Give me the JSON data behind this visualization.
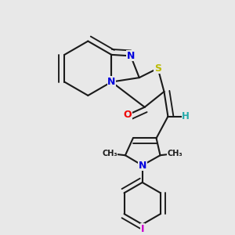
{
  "background_color": "#e8e8e8",
  "bond_color": "#1a1a1a",
  "atom_colors": {
    "N": "#0000dd",
    "O": "#ee0000",
    "S": "#bbbb00",
    "H": "#22aaaa",
    "I": "#cc00cc",
    "C": "#1a1a1a"
  },
  "lw": 1.5,
  "fs": 8.5,
  "doff": 0.085,
  "fig_w": 3.0,
  "fig_h": 3.0,
  "dpi": 100
}
